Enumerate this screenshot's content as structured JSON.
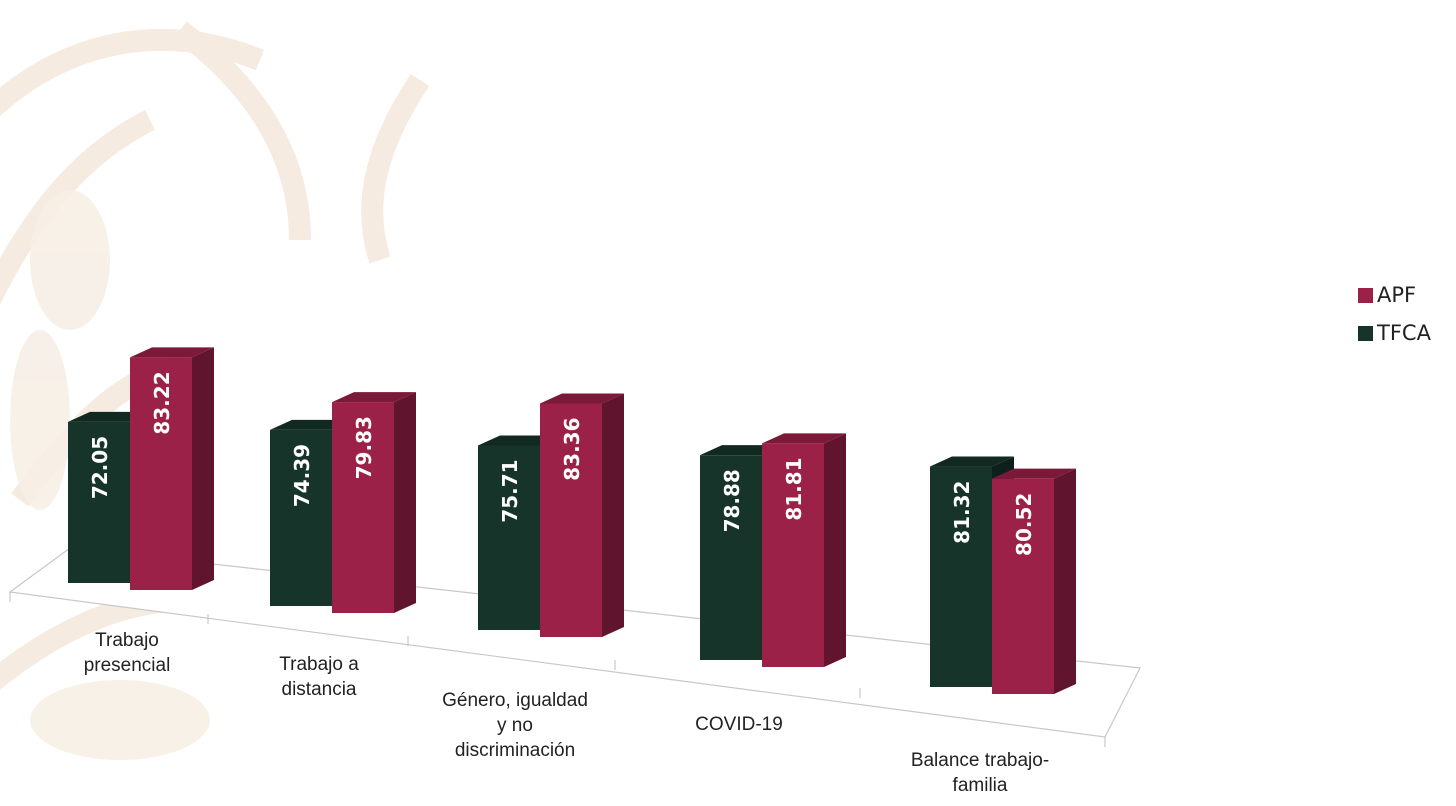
{
  "chart_data": {
    "type": "bar",
    "categories": [
      [
        "Trabajo",
        "presencial"
      ],
      [
        "Trabajo a",
        "distancia"
      ],
      [
        "Género, igualdad",
        "y no",
        "discriminación"
      ],
      [
        "COVID-19"
      ],
      [
        "Balance trabajo-",
        "familia"
      ]
    ],
    "series": [
      {
        "name": "TFCA",
        "values": [
          72.05,
          74.39,
          75.71,
          78.88,
          81.32
        ],
        "color": "#17342b"
      },
      {
        "name": "APF",
        "values": [
          83.22,
          79.83,
          83.36,
          81.81,
          80.52
        ],
        "color": "#9c2148"
      }
    ],
    "value_labels": {
      "TFCA": [
        "72.05",
        "74.39",
        "75.71",
        "78.88",
        "81.32"
      ],
      "APF": [
        "83.22",
        "79.83",
        "83.36",
        "81.81",
        "80.52"
      ]
    },
    "grid": false,
    "legend_position": "right"
  },
  "legend": [
    {
      "name": "APF",
      "color": "#9c2148"
    },
    {
      "name": "TFCA",
      "color": "#17342b"
    }
  ]
}
